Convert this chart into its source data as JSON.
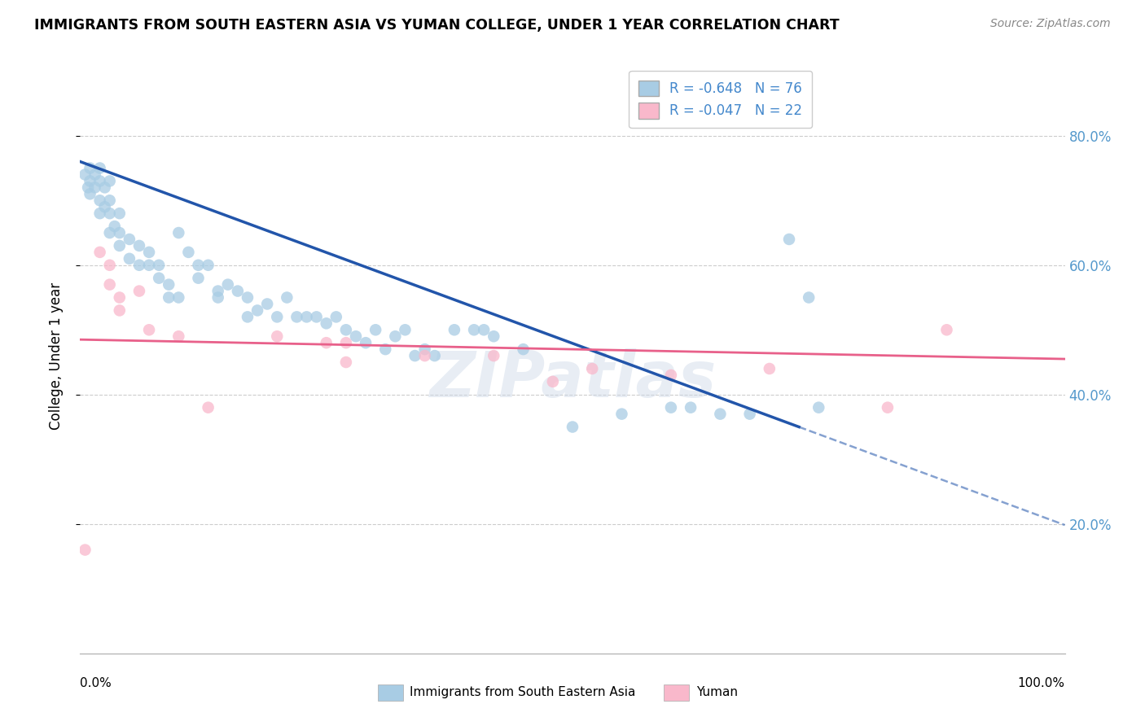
{
  "title": "IMMIGRANTS FROM SOUTH EASTERN ASIA VS YUMAN COLLEGE, UNDER 1 YEAR CORRELATION CHART",
  "source": "Source: ZipAtlas.com",
  "ylabel": "College, Under 1 year",
  "xlim": [
    0.0,
    1.0
  ],
  "ylim": [
    0.0,
    0.92
  ],
  "yticks": [
    0.2,
    0.4,
    0.6,
    0.8
  ],
  "ytick_labels": [
    "20.0%",
    "40.0%",
    "60.0%",
    "80.0%"
  ],
  "R_blue": -0.648,
  "N_blue": 76,
  "R_pink": -0.047,
  "N_pink": 22,
  "legend_label_blue": "Immigrants from South Eastern Asia",
  "legend_label_pink": "Yuman",
  "blue_color": "#a8cce4",
  "pink_color": "#f9b8cb",
  "line_blue": "#2255aa",
  "line_pink": "#e8608a",
  "blue_scatter_x": [
    0.005,
    0.008,
    0.01,
    0.01,
    0.01,
    0.015,
    0.015,
    0.02,
    0.02,
    0.02,
    0.02,
    0.025,
    0.025,
    0.03,
    0.03,
    0.03,
    0.03,
    0.035,
    0.04,
    0.04,
    0.04,
    0.05,
    0.05,
    0.06,
    0.06,
    0.07,
    0.07,
    0.08,
    0.08,
    0.09,
    0.09,
    0.1,
    0.1,
    0.11,
    0.12,
    0.12,
    0.13,
    0.14,
    0.14,
    0.15,
    0.16,
    0.17,
    0.17,
    0.18,
    0.19,
    0.2,
    0.21,
    0.22,
    0.23,
    0.24,
    0.25,
    0.26,
    0.27,
    0.28,
    0.29,
    0.3,
    0.31,
    0.32,
    0.33,
    0.34,
    0.35,
    0.36,
    0.38,
    0.4,
    0.41,
    0.42,
    0.45,
    0.5,
    0.55,
    0.6,
    0.62,
    0.65,
    0.68,
    0.72,
    0.74,
    0.75
  ],
  "blue_scatter_y": [
    0.74,
    0.72,
    0.75,
    0.73,
    0.71,
    0.74,
    0.72,
    0.75,
    0.73,
    0.7,
    0.68,
    0.72,
    0.69,
    0.73,
    0.7,
    0.68,
    0.65,
    0.66,
    0.68,
    0.65,
    0.63,
    0.64,
    0.61,
    0.6,
    0.63,
    0.62,
    0.6,
    0.6,
    0.58,
    0.57,
    0.55,
    0.55,
    0.65,
    0.62,
    0.6,
    0.58,
    0.6,
    0.56,
    0.55,
    0.57,
    0.56,
    0.55,
    0.52,
    0.53,
    0.54,
    0.52,
    0.55,
    0.52,
    0.52,
    0.52,
    0.51,
    0.52,
    0.5,
    0.49,
    0.48,
    0.5,
    0.47,
    0.49,
    0.5,
    0.46,
    0.47,
    0.46,
    0.5,
    0.5,
    0.5,
    0.49,
    0.47,
    0.35,
    0.37,
    0.38,
    0.38,
    0.37,
    0.37,
    0.64,
    0.55,
    0.38
  ],
  "pink_scatter_x": [
    0.005,
    0.02,
    0.03,
    0.03,
    0.04,
    0.04,
    0.06,
    0.07,
    0.1,
    0.13,
    0.2,
    0.25,
    0.27,
    0.27,
    0.35,
    0.42,
    0.48,
    0.52,
    0.6,
    0.7,
    0.82,
    0.88
  ],
  "pink_scatter_y": [
    0.16,
    0.62,
    0.6,
    0.57,
    0.55,
    0.53,
    0.56,
    0.5,
    0.49,
    0.38,
    0.49,
    0.48,
    0.48,
    0.45,
    0.46,
    0.46,
    0.42,
    0.44,
    0.43,
    0.44,
    0.38,
    0.5
  ],
  "line_blue_x0": 0.0,
  "line_blue_y0": 0.76,
  "line_blue_x1": 0.73,
  "line_blue_y1": 0.35,
  "line_blue_dash_x0": 0.73,
  "line_blue_dash_x1": 1.0,
  "line_pink_x0": 0.0,
  "line_pink_y0": 0.485,
  "line_pink_x1": 1.0,
  "line_pink_y1": 0.455,
  "watermark_text": "ZIPatlas",
  "background_color": "#ffffff",
  "grid_color": "#cccccc"
}
